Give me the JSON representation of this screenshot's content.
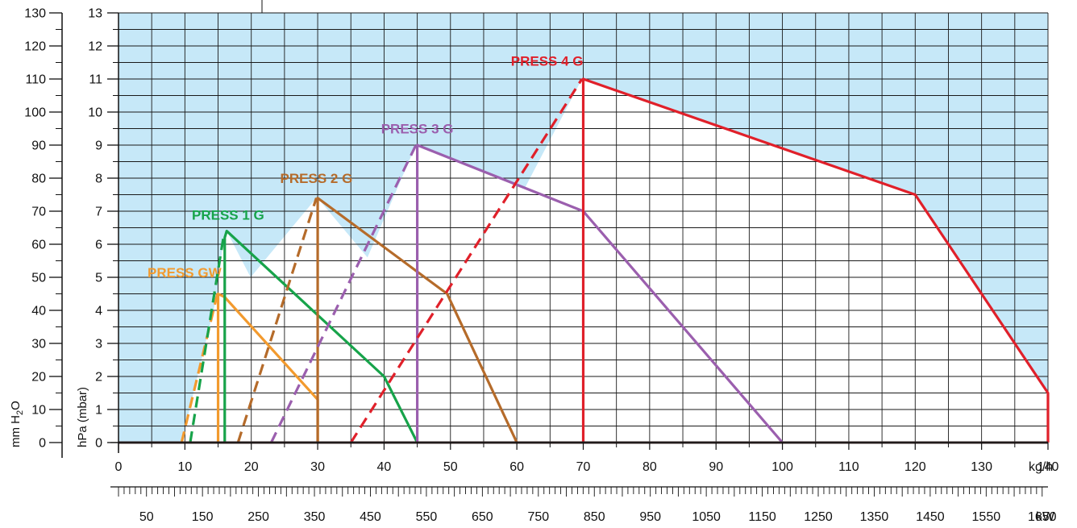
{
  "chart_data": {
    "type": "line",
    "xlabel_primary": "kg/h",
    "xlabel_secondary": "kW",
    "ylabel_primary": "hPa (mbar)",
    "ylabel_secondary_parts": {
      "pre": "mm H",
      "sub": "2",
      "post": "O"
    },
    "x_range": [
      0,
      140
    ],
    "y_range": [
      0,
      13
    ],
    "y_secondary_range": [
      0,
      130
    ],
    "x_ticks": [
      "0",
      "10",
      "20",
      "30",
      "40",
      "50",
      "60",
      "70",
      "80",
      "90",
      "100",
      "110",
      "120",
      "130",
      "140"
    ],
    "y_ticks": [
      "0",
      "1",
      "2",
      "3",
      "4",
      "5",
      "6",
      "7",
      "8",
      "9",
      "10",
      "11",
      "12",
      "13"
    ],
    "y_secondary_ticks": [
      "0",
      "10",
      "20",
      "30",
      "40",
      "50",
      "60",
      "70",
      "80",
      "90",
      "100",
      "110",
      "120",
      "130"
    ],
    "kw_ticks": [
      "50",
      "150",
      "250",
      "350",
      "450",
      "550",
      "650",
      "750",
      "850",
      "950",
      "1050",
      "1150",
      "1250",
      "1350",
      "1450",
      "1550",
      "1650"
    ],
    "kw_per_kgh": 11.86,
    "background_colors": {
      "outside": "#c6e8f8",
      "inside": "#ffffff",
      "grid": "#1a1a1a"
    },
    "series": [
      {
        "name": "PRESS GW",
        "color": "#f29a2e",
        "dashed": [
          [
            9.5,
            0
          ],
          [
            14.9,
            4.5
          ]
        ],
        "solid": [
          [
            15,
            0
          ],
          [
            15,
            4.5
          ],
          [
            16,
            4.4
          ],
          [
            30,
            1.3
          ],
          [
            30,
            0
          ]
        ]
      },
      {
        "name": "PRESS 1 G",
        "color": "#17a34a",
        "dashed": [
          [
            10.8,
            0
          ],
          [
            15.8,
            6.2
          ]
        ],
        "solid": [
          [
            16,
            0
          ],
          [
            16,
            6.2
          ],
          [
            16.3,
            6.4
          ],
          [
            40,
            2.0
          ],
          [
            45,
            0
          ]
        ]
      },
      {
        "name": "PRESS 2 G",
        "color": "#b56b2a",
        "dashed": [
          [
            18,
            0
          ],
          [
            29.8,
            7.4
          ]
        ],
        "solid": [
          [
            30,
            0
          ],
          [
            30,
            7.4
          ],
          [
            49.5,
            4.5
          ],
          [
            60,
            0
          ]
        ]
      },
      {
        "name": "PRESS 3 G",
        "color": "#9b5fae",
        "dashed": [
          [
            23,
            0
          ],
          [
            44.8,
            9.0
          ]
        ],
        "solid": [
          [
            45,
            0
          ],
          [
            45,
            9.0
          ],
          [
            70,
            7.0
          ],
          [
            100,
            0
          ]
        ]
      },
      {
        "name": "PRESS 4 G",
        "color": "#e0202a",
        "dashed": [
          [
            35,
            0
          ],
          [
            69.8,
            11.0
          ]
        ],
        "solid": [
          [
            70,
            0
          ],
          [
            70,
            11.0
          ],
          [
            120,
            7.5
          ],
          [
            140,
            1.5
          ],
          [
            140,
            0
          ]
        ]
      }
    ]
  }
}
